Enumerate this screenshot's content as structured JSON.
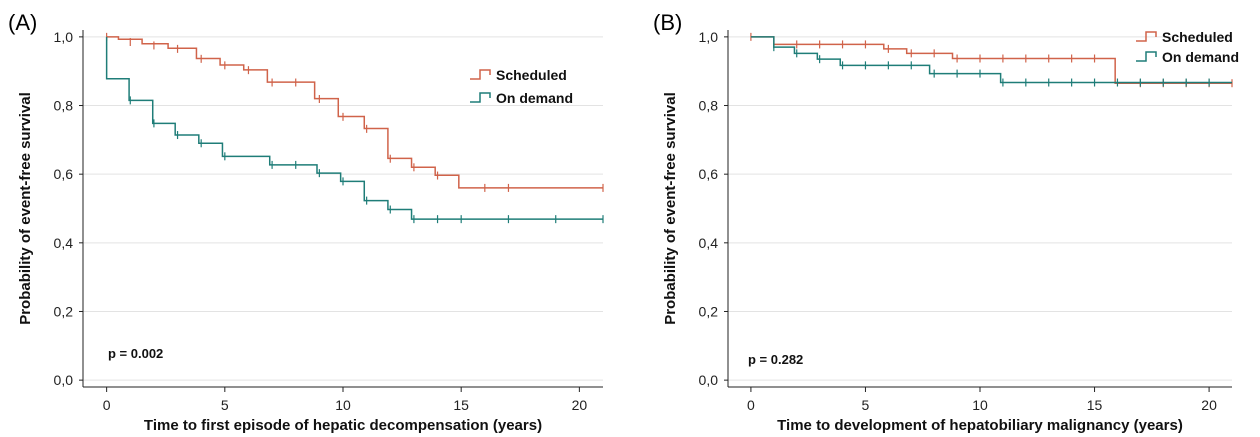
{
  "colors": {
    "scheduled": "#d0634a",
    "on_demand": "#1f7d78"
  },
  "chart_data": [
    {
      "type": "line",
      "panel_label": "(A)",
      "xlabel": "Time to first episode of hepatic decompensation (years)",
      "ylabel": "Probability of event-free survival",
      "xlim": [
        -1,
        21
      ],
      "ylim": [
        -0.02,
        1.02
      ],
      "x_ticks": [
        0,
        5,
        10,
        15,
        20
      ],
      "x_tick_labels": [
        "0",
        "5",
        "10",
        "15",
        "20"
      ],
      "y_ticks": [
        0,
        0.2,
        0.4,
        0.6,
        0.8,
        1.0
      ],
      "y_tick_labels": [
        "0,0",
        "0,2",
        "0,4",
        "0,6",
        "0,8",
        "1,0"
      ],
      "grid": "horizontal",
      "legend_position": "top-right",
      "annotation": "p = 0.002",
      "series": [
        {
          "name": "Scheduled",
          "color_key": "scheduled",
          "x_end": 21,
          "steps": [
            [
              0,
              1.0
            ],
            [
              0.5,
              0.993
            ],
            [
              1.5,
              0.98
            ],
            [
              2.6,
              0.967
            ],
            [
              3.8,
              0.937
            ],
            [
              4.8,
              0.918
            ],
            [
              5.8,
              0.904
            ],
            [
              6.8,
              0.868
            ],
            [
              8.8,
              0.82
            ],
            [
              9.8,
              0.768
            ],
            [
              10.9,
              0.733
            ],
            [
              11.9,
              0.646
            ],
            [
              12.9,
              0.62
            ],
            [
              13.9,
              0.597
            ],
            [
              14.9,
              0.56
            ]
          ],
          "censored": [
            [
              0,
              1.0
            ],
            [
              1,
              0.985
            ],
            [
              2,
              0.975
            ],
            [
              3,
              0.965
            ],
            [
              4,
              0.936
            ],
            [
              5,
              0.917
            ],
            [
              6,
              0.903
            ],
            [
              7,
              0.867
            ],
            [
              8,
              0.867
            ],
            [
              9,
              0.819
            ],
            [
              10,
              0.767
            ],
            [
              11,
              0.732
            ],
            [
              12,
              0.645
            ],
            [
              13,
              0.62
            ],
            [
              14,
              0.596
            ],
            [
              16,
              0.56
            ],
            [
              17,
              0.56
            ],
            [
              21,
              0.56
            ]
          ]
        },
        {
          "name": "On demand",
          "color_key": "on_demand",
          "x_end": 21,
          "steps": [
            [
              0,
              1.0
            ],
            [
              0.0,
              0.878
            ],
            [
              0.95,
              0.815
            ],
            [
              1.95,
              0.748
            ],
            [
              2.9,
              0.714
            ],
            [
              3.9,
              0.69
            ],
            [
              4.9,
              0.652
            ],
            [
              6.9,
              0.627
            ],
            [
              8.9,
              0.603
            ],
            [
              9.9,
              0.579
            ],
            [
              10.9,
              0.523
            ],
            [
              11.9,
              0.497
            ],
            [
              12.9,
              0.469
            ]
          ],
          "censored": [
            [
              1,
              0.815
            ],
            [
              2,
              0.748
            ],
            [
              3,
              0.714
            ],
            [
              4,
              0.69
            ],
            [
              5,
              0.652
            ],
            [
              7,
              0.627
            ],
            [
              8,
              0.627
            ],
            [
              9,
              0.603
            ],
            [
              10,
              0.579
            ],
            [
              11,
              0.523
            ],
            [
              12,
              0.497
            ],
            [
              13,
              0.469
            ],
            [
              14,
              0.469
            ],
            [
              15,
              0.469
            ],
            [
              17,
              0.469
            ],
            [
              19,
              0.469
            ],
            [
              21,
              0.469
            ]
          ]
        }
      ]
    },
    {
      "type": "line",
      "panel_label": "(B)",
      "xlabel": "Time to development of hepatobiliary malignancy (years)",
      "ylabel": "Probability of event-free survival",
      "xlim": [
        -1,
        21
      ],
      "ylim": [
        -0.02,
        1.02
      ],
      "x_ticks": [
        0,
        5,
        10,
        15,
        20
      ],
      "x_tick_labels": [
        "0",
        "5",
        "10",
        "15",
        "20"
      ],
      "y_ticks": [
        0,
        0.2,
        0.4,
        0.6,
        0.8,
        1.0
      ],
      "y_tick_labels": [
        "0,0",
        "0,2",
        "0,4",
        "0,6",
        "0,8",
        "1,0"
      ],
      "grid": "horizontal",
      "legend_position": "top-right",
      "annotation": "p = 0.282",
      "series": [
        {
          "name": "Scheduled",
          "color_key": "scheduled",
          "x_end": 21,
          "steps": [
            [
              0,
              1.0
            ],
            [
              1.0,
              0.978
            ],
            [
              5.8,
              0.965
            ],
            [
              6.8,
              0.952
            ],
            [
              8.8,
              0.937
            ],
            [
              15.9,
              0.865
            ]
          ],
          "censored": [
            [
              0,
              1.0
            ],
            [
              1,
              0.978
            ],
            [
              2,
              0.978
            ],
            [
              3,
              0.978
            ],
            [
              4,
              0.978
            ],
            [
              5,
              0.978
            ],
            [
              6,
              0.965
            ],
            [
              7,
              0.952
            ],
            [
              8,
              0.952
            ],
            [
              9,
              0.937
            ],
            [
              10,
              0.937
            ],
            [
              11,
              0.937
            ],
            [
              12,
              0.937
            ],
            [
              13,
              0.937
            ],
            [
              14,
              0.937
            ],
            [
              15,
              0.937
            ],
            [
              17,
              0.865
            ],
            [
              18,
              0.865
            ],
            [
              19,
              0.865
            ],
            [
              20,
              0.865
            ],
            [
              21,
              0.865
            ]
          ]
        },
        {
          "name": "On demand",
          "color_key": "on_demand",
          "x_end": 21,
          "steps": [
            [
              0,
              1.0
            ],
            [
              1.0,
              0.97
            ],
            [
              1.9,
              0.952
            ],
            [
              2.9,
              0.935
            ],
            [
              3.9,
              0.917
            ],
            [
              7.8,
              0.893
            ],
            [
              10.9,
              0.867
            ]
          ],
          "censored": [
            [
              1,
              0.97
            ],
            [
              2,
              0.952
            ],
            [
              3,
              0.935
            ],
            [
              4,
              0.917
            ],
            [
              5,
              0.917
            ],
            [
              6,
              0.917
            ],
            [
              7,
              0.917
            ],
            [
              8,
              0.893
            ],
            [
              9,
              0.893
            ],
            [
              10,
              0.893
            ],
            [
              11,
              0.867
            ],
            [
              12,
              0.867
            ],
            [
              13,
              0.867
            ],
            [
              14,
              0.867
            ],
            [
              15,
              0.867
            ],
            [
              16,
              0.867
            ],
            [
              17,
              0.867
            ],
            [
              18,
              0.867
            ],
            [
              19,
              0.867
            ],
            [
              20,
              0.867
            ]
          ]
        }
      ]
    }
  ]
}
